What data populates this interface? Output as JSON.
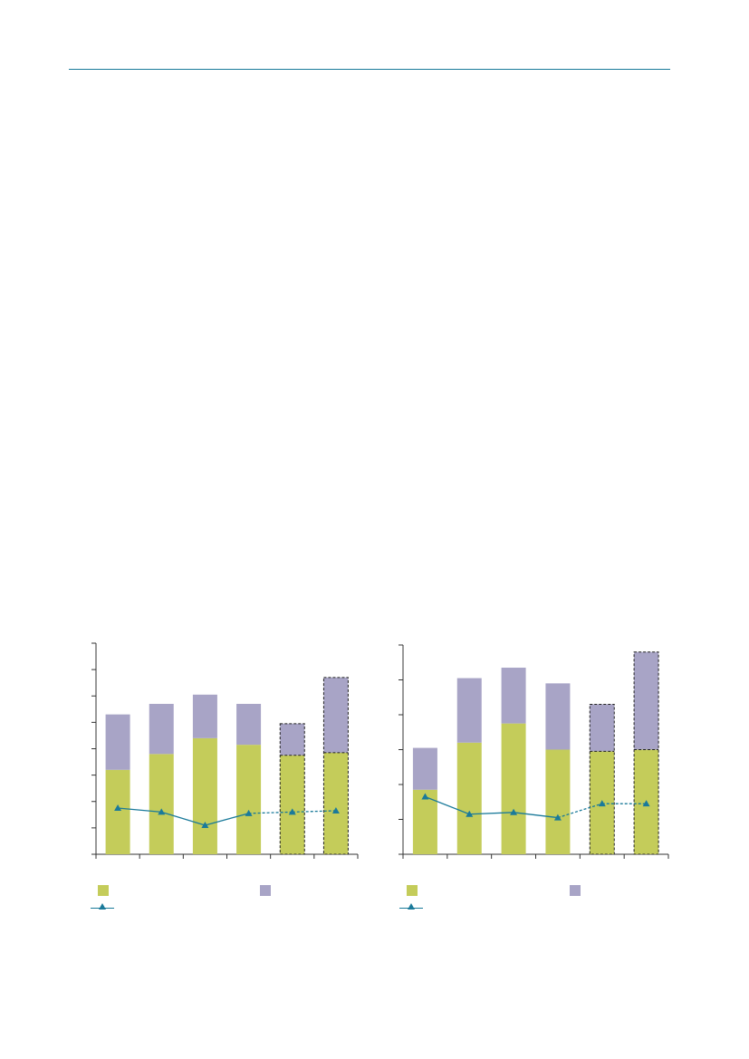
{
  "colors": {
    "header_rule": "#1a7a9a",
    "base_bar": "#c4cc5a",
    "top_bar": "#a8a4c6",
    "line": "#1a7a9a",
    "axis": "#333333"
  },
  "chart_data": [
    {
      "type": "bar",
      "stacked": true,
      "categories": [
        "",
        "",
        "",
        "",
        "",
        ""
      ],
      "series": [
        {
          "values": [
            3.2,
            3.8,
            4.4,
            4.15,
            3.75,
            3.85
          ]
        },
        {
          "values": [
            2.1,
            1.9,
            1.65,
            1.55,
            1.2,
            2.85
          ]
        }
      ],
      "line": {
        "values": [
          1.75,
          1.6,
          1.1,
          1.55,
          1.6,
          1.65
        ],
        "projected_from_index": 3
      },
      "projected_bars": [
        4,
        5
      ],
      "ylim": [
        0,
        8
      ],
      "yticks": [
        0,
        1,
        2,
        3,
        4,
        5,
        6,
        7,
        8
      ],
      "legend_labels": [
        "",
        "",
        ""
      ]
    },
    {
      "type": "bar",
      "stacked": true,
      "categories": [
        "",
        "",
        "",
        "",
        "",
        ""
      ],
      "series": [
        {
          "values": [
            1.85,
            3.2,
            3.75,
            3.0,
            2.95,
            3.0
          ]
        },
        {
          "values": [
            1.2,
            1.85,
            1.6,
            1.9,
            1.35,
            2.8
          ]
        }
      ],
      "line": {
        "values": [
          1.65,
          1.15,
          1.2,
          1.05,
          1.45,
          1.45
        ],
        "projected_from_index": 3
      },
      "projected_bars": [
        4,
        5
      ],
      "ylim": [
        0,
        6
      ],
      "yticks": [
        0,
        1,
        2,
        3,
        4,
        5,
        6
      ],
      "legend_labels": [
        "",
        "",
        ""
      ]
    }
  ]
}
